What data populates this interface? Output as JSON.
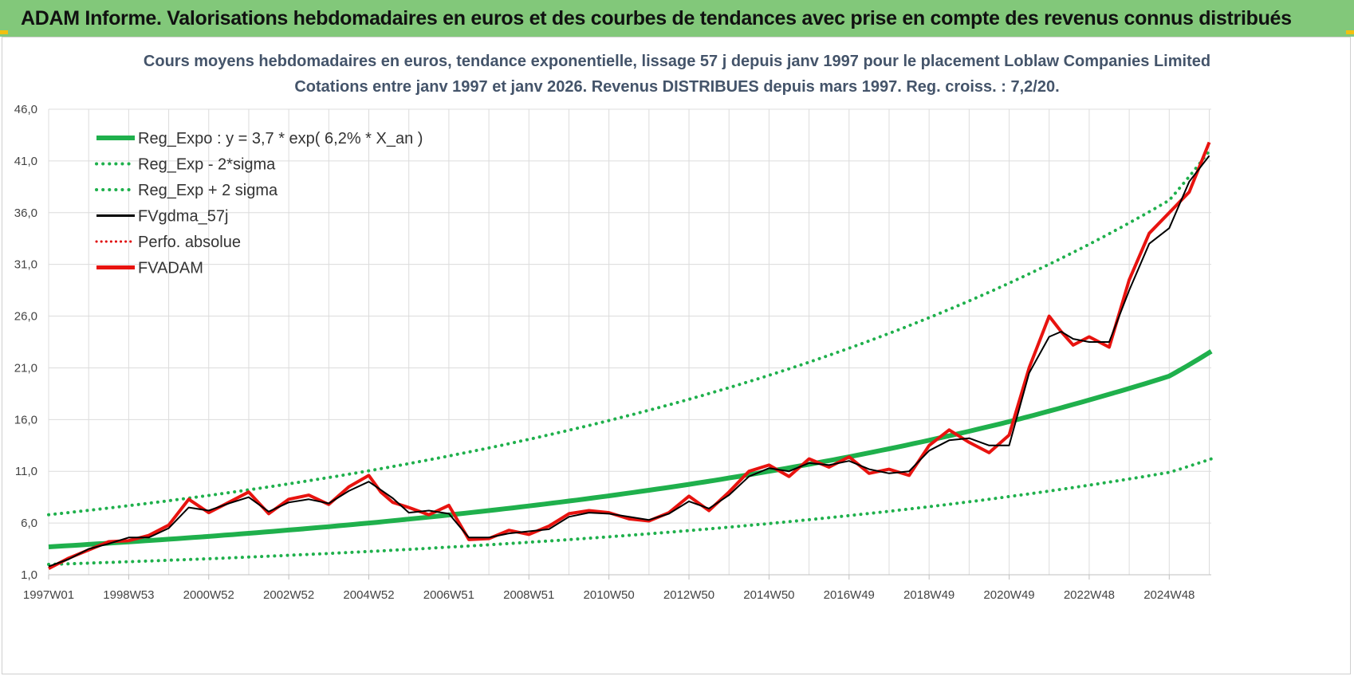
{
  "banner": {
    "title": "ADAM Informe. Valorisations hebdomadaires en euros et des courbes de tendances avec prise en compte des revenus connus distribués"
  },
  "colors": {
    "banner_bg": "#82c87a",
    "reg_expo": "#1fb04c",
    "sigma": "#1fb04c",
    "fvgdma": "#000000",
    "perfo": "#e00000",
    "fvadam": "#e8130f"
  },
  "chart_data": {
    "type": "line",
    "title": "Cours moyens hebdomadaires en euros, tendance exponentielle, lissage 57 j depuis janv 1997 pour le placement Loblaw Companies Limited",
    "subtitle": "Cotations entre janv 1997 et janv 2026. Revenus DISTRIBUES depuis mars 1997. Reg. croiss. : 7,2/20.",
    "ylim": [
      1,
      46
    ],
    "yticks": [
      "1,0",
      "6,0",
      "11,0",
      "16,0",
      "21,0",
      "26,0",
      "31,0",
      "36,0",
      "41,0",
      "46,0"
    ],
    "xlim": [
      1997.0,
      2026.05
    ],
    "xticks": [
      {
        "label": "1997W01",
        "x": 1997.0
      },
      {
        "label": "1998W53",
        "x": 1999.0
      },
      {
        "label": "2000W52",
        "x": 2001.0
      },
      {
        "label": "2002W52",
        "x": 2003.0
      },
      {
        "label": "2004W52",
        "x": 2005.0
      },
      {
        "label": "2006W51",
        "x": 2007.0
      },
      {
        "label": "2008W51",
        "x": 2009.0
      },
      {
        "label": "2010W50",
        "x": 2011.0
      },
      {
        "label": "2012W50",
        "x": 2013.0
      },
      {
        "label": "2014W50",
        "x": 2015.0
      },
      {
        "label": "2016W49",
        "x": 2017.0
      },
      {
        "label": "2018W49",
        "x": 2019.0
      },
      {
        "label": "2020W49",
        "x": 2021.0
      },
      {
        "label": "2022W48",
        "x": 2023.0
      },
      {
        "label": "2024W48",
        "x": 2025.0
      }
    ],
    "grid": true,
    "legend_position": "top-left",
    "legend": [
      {
        "label": "Reg_Expo : y = 3,7 * exp( 6,2% *  X_an )",
        "style": "thick"
      },
      {
        "label": "Reg_Exp - 2*sigma",
        "style": "dotted"
      },
      {
        "label": "Reg_Exp + 2 sigma",
        "style": "dotted"
      },
      {
        "label": "FVgdma_57j",
        "style": "solid"
      },
      {
        "label": "Perfo. absolue",
        "style": "dotted-red"
      },
      {
        "label": "FVADAM",
        "style": "thick-red"
      }
    ],
    "series": [
      {
        "name": "Reg_Expo : y = 3,7 * exp( 6,2% *  X_an )",
        "x": [
          1997.0,
          1999.0,
          2001.0,
          2003.0,
          2005.0,
          2007.0,
          2009.0,
          2011.0,
          2013.0,
          2015.0,
          2017.0,
          2019.0,
          2021.0,
          2023.0,
          2025.0,
          2026.05
        ],
        "values": [
          3.7,
          4.18,
          4.71,
          5.32,
          6.0,
          6.78,
          7.65,
          8.63,
          9.74,
          11.0,
          12.4,
          14.0,
          15.8,
          17.9,
          20.2,
          22.6
        ]
      },
      {
        "name": "Reg_Exp - 2*sigma",
        "x": [
          1997.0,
          1999.0,
          2001.0,
          2003.0,
          2005.0,
          2007.0,
          2009.0,
          2011.0,
          2013.0,
          2015.0,
          2017.0,
          2019.0,
          2021.0,
          2023.0,
          2025.0,
          2026.05
        ],
        "values": [
          2.0,
          2.26,
          2.55,
          2.88,
          3.25,
          3.67,
          4.14,
          4.67,
          5.27,
          5.95,
          6.72,
          7.58,
          8.56,
          9.66,
          10.9,
          12.2
        ]
      },
      {
        "name": "Reg_Exp + 2 sigma",
        "x": [
          1997.0,
          1999.0,
          2001.0,
          2003.0,
          2005.0,
          2007.0,
          2009.0,
          2011.0,
          2013.0,
          2015.0,
          2017.0,
          2019.0,
          2021.0,
          2023.0,
          2025.0,
          2026.05
        ],
        "values": [
          6.8,
          7.68,
          8.67,
          9.79,
          11.05,
          12.48,
          14.09,
          15.91,
          17.96,
          20.28,
          22.9,
          25.85,
          29.19,
          32.95,
          37.2,
          42.2
        ]
      },
      {
        "name": "FVgdma_57j",
        "x": [
          1997.0,
          1997.5,
          1998.0,
          1998.5,
          1999.0,
          1999.5,
          2000.0,
          2000.5,
          2001.0,
          2001.5,
          2002.0,
          2002.5,
          2003.0,
          2003.5,
          2004.0,
          2004.5,
          2005.0,
          2005.3,
          2005.6,
          2006.0,
          2006.5,
          2007.0,
          2007.5,
          2008.0,
          2008.5,
          2009.0,
          2009.5,
          2010.0,
          2010.5,
          2011.0,
          2011.5,
          2012.0,
          2012.5,
          2013.0,
          2013.5,
          2014.0,
          2014.5,
          2015.0,
          2015.5,
          2016.0,
          2016.5,
          2017.0,
          2017.5,
          2018.0,
          2018.5,
          2019.0,
          2019.5,
          2020.0,
          2020.5,
          2021.0,
          2021.5,
          2022.0,
          2022.3,
          2022.6,
          2023.0,
          2023.5,
          2024.0,
          2024.5,
          2025.0,
          2025.5,
          2026.0
        ],
        "values": [
          1.8,
          2.5,
          3.5,
          4.0,
          4.6,
          4.6,
          5.5,
          7.5,
          7.2,
          7.9,
          8.5,
          7.1,
          8.0,
          8.3,
          7.9,
          9.1,
          10.0,
          9.2,
          8.4,
          7.0,
          7.2,
          6.9,
          4.6,
          4.6,
          5.0,
          5.2,
          5.4,
          6.6,
          7.0,
          6.9,
          6.6,
          6.3,
          6.9,
          8.1,
          7.4,
          8.7,
          10.5,
          11.3,
          11.0,
          11.8,
          11.6,
          12.0,
          11.2,
          10.8,
          11.0,
          13.0,
          14.0,
          14.2,
          13.5,
          13.5,
          20.5,
          24.0,
          24.5,
          23.8,
          23.5,
          23.5,
          28.5,
          33.0,
          34.5,
          39.0,
          41.5
        ]
      },
      {
        "name": "FVADAM",
        "x": [
          1997.0,
          1997.5,
          1998.0,
          1998.5,
          1999.0,
          1999.5,
          2000.0,
          2000.5,
          2001.0,
          2001.5,
          2002.0,
          2002.5,
          2003.0,
          2003.5,
          2004.0,
          2004.5,
          2005.0,
          2005.3,
          2005.6,
          2006.0,
          2006.5,
          2007.0,
          2007.5,
          2008.0,
          2008.5,
          2009.0,
          2009.5,
          2010.0,
          2010.5,
          2011.0,
          2011.5,
          2012.0,
          2012.5,
          2013.0,
          2013.5,
          2014.0,
          2014.5,
          2015.0,
          2015.5,
          2016.0,
          2016.5,
          2017.0,
          2017.5,
          2018.0,
          2018.5,
          2019.0,
          2019.5,
          2020.0,
          2020.5,
          2021.0,
          2021.5,
          2022.0,
          2022.3,
          2022.6,
          2023.0,
          2023.5,
          2024.0,
          2024.5,
          2025.0,
          2025.5,
          2026.0
        ],
        "values": [
          1.6,
          2.6,
          3.4,
          4.2,
          4.3,
          4.8,
          5.8,
          8.3,
          7.0,
          8.0,
          9.0,
          6.9,
          8.3,
          8.7,
          7.8,
          9.5,
          10.6,
          9.0,
          8.0,
          7.5,
          6.8,
          7.7,
          4.4,
          4.5,
          5.3,
          4.9,
          5.7,
          6.9,
          7.2,
          7.0,
          6.4,
          6.2,
          7.0,
          8.6,
          7.2,
          9.0,
          11.0,
          11.6,
          10.5,
          12.2,
          11.4,
          12.4,
          10.8,
          11.2,
          10.6,
          13.5,
          15.0,
          13.8,
          12.8,
          14.5,
          21.0,
          26.0,
          24.5,
          23.2,
          24.0,
          23.0,
          29.5,
          34.0,
          36.0,
          38.0,
          42.8
        ]
      }
    ]
  }
}
